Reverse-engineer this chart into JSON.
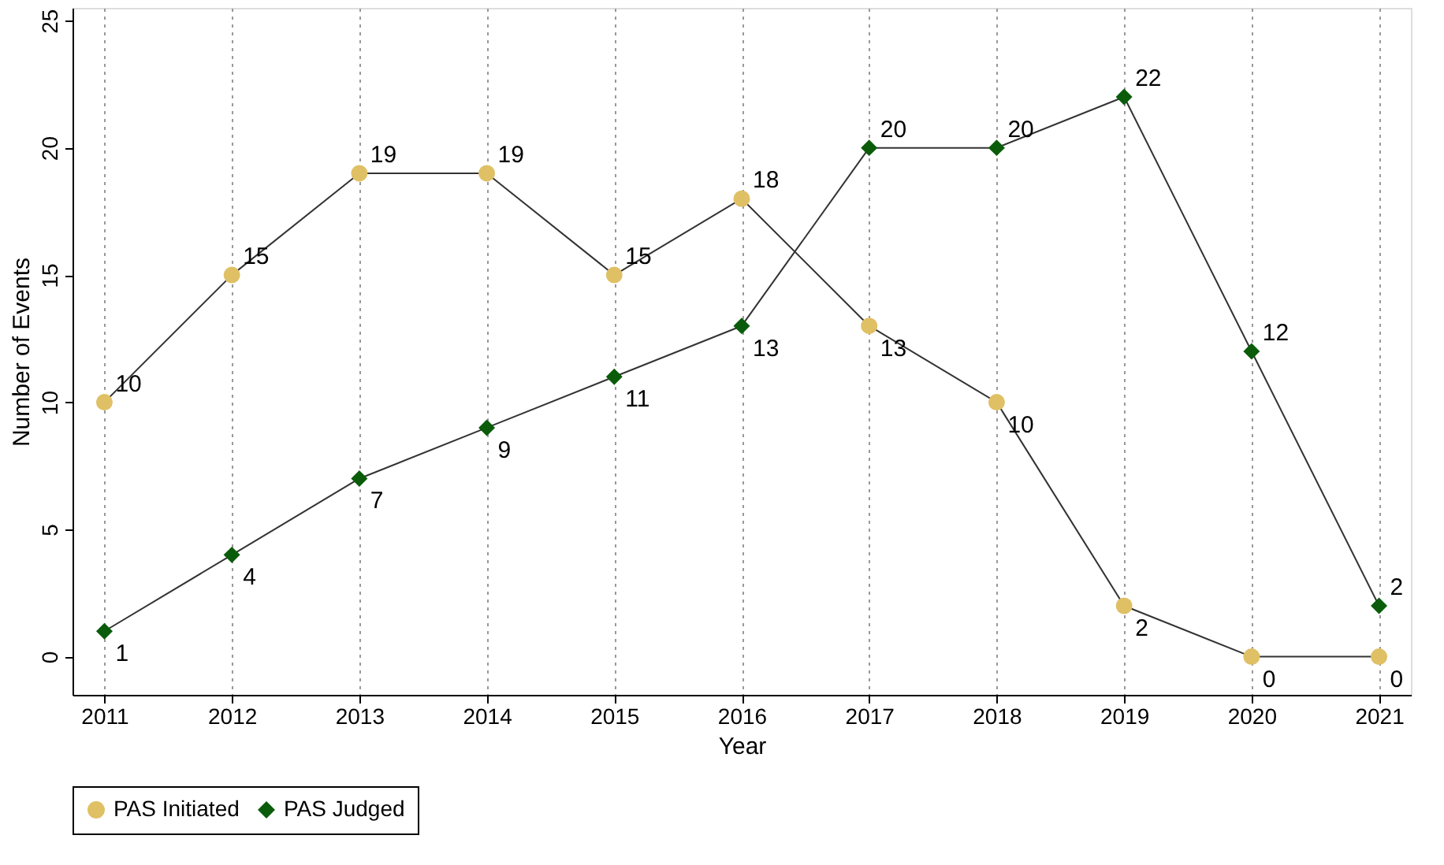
{
  "chart_data": {
    "type": "line",
    "xlabel": "Year",
    "ylabel": "Number of Events",
    "x": [
      2011,
      2012,
      2013,
      2014,
      2015,
      2016,
      2017,
      2018,
      2019,
      2020,
      2021
    ],
    "series": [
      {
        "name": "PAS Initiated",
        "color": "#e0c065",
        "marker": "circle",
        "values": [
          10,
          15,
          19,
          19,
          15,
          18,
          13,
          10,
          2,
          0,
          0
        ]
      },
      {
        "name": "PAS Judged",
        "color": "#0a5c0a",
        "marker": "diamond",
        "values": [
          1,
          4,
          7,
          9,
          11,
          13,
          20,
          20,
          22,
          12,
          2
        ]
      }
    ],
    "xlim": [
      2010.75,
      2021.25
    ],
    "xticks": [
      2011,
      2012,
      2013,
      2014,
      2015,
      2016,
      2017,
      2018,
      2019,
      2020,
      2021
    ],
    "ylim": [
      -1.5,
      25.5
    ],
    "yticks": [
      0,
      5,
      10,
      15,
      20,
      25
    ],
    "grid": "x",
    "legend": "bottom",
    "data_labels": true,
    "line_style": "solid"
  }
}
